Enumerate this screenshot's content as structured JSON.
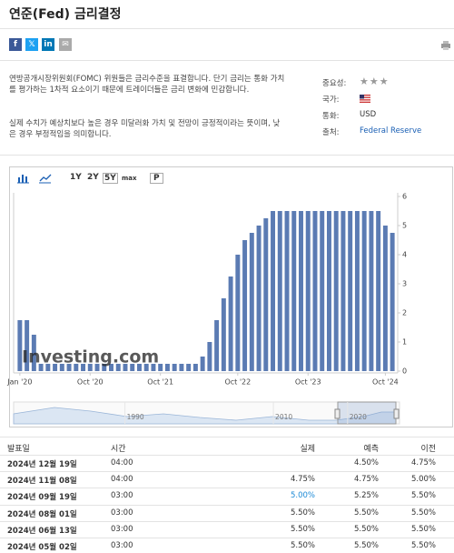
{
  "header": {
    "title": "연준(Fed) 금리결정"
  },
  "description": [
    "연방공개시장위원회(FOMC) 위원들은 금리수준을 표결합니다. 단기 금리는 통화 가치를 평가하는 1차적 요소이기 때문에 트레이더들은 금리 변화에 민감합니다.",
    "실제 수치가 예상치보다 높은 경우 미달러화 가치 및 전망이 긍정적이라는 뜻이며, 낮은 경우 부정적임을 의미합니다."
  ],
  "info": {
    "importance_label": "중요성:",
    "importance": 3,
    "country_label": "국가:",
    "currency_label": "통화:",
    "currency": "USD",
    "source_label": "출처:",
    "source": "Federal Reserve"
  },
  "toolbar": {
    "buttons": [
      "1Y",
      "2Y",
      "5Y",
      "max",
      "P"
    ]
  },
  "chart_data": {
    "type": "bar",
    "color": "#5b7bb3",
    "categories": [
      "Jan '20",
      null,
      null,
      null,
      null,
      null,
      null,
      null,
      null,
      null,
      "Oct '20",
      null,
      null,
      null,
      null,
      null,
      null,
      null,
      null,
      null,
      "Oct '21",
      null,
      null,
      null,
      null,
      null,
      null,
      null,
      null,
      null,
      null,
      "Oct '22",
      null,
      null,
      null,
      null,
      null,
      null,
      null,
      null,
      null,
      "Oct '23",
      null,
      null,
      null,
      null,
      null,
      null,
      null,
      null,
      null,
      null,
      "Oct '24",
      null
    ],
    "values": [
      1.75,
      1.75,
      1.25,
      0.25,
      0.25,
      0.25,
      0.25,
      0.25,
      0.25,
      0.25,
      0.25,
      0.25,
      0.25,
      0.25,
      0.25,
      0.25,
      0.25,
      0.25,
      0.25,
      0.25,
      0.25,
      0.25,
      0.25,
      0.25,
      0.25,
      0.25,
      0.5,
      1.0,
      1.75,
      2.5,
      3.25,
      4.0,
      4.5,
      4.75,
      5.0,
      5.25,
      5.5,
      5.5,
      5.5,
      5.5,
      5.5,
      5.5,
      5.5,
      5.5,
      5.5,
      5.5,
      5.5,
      5.5,
      5.5,
      5.5,
      5.5,
      5.5,
      5.0,
      4.75
    ],
    "ylim": [
      0,
      6
    ],
    "yticks": [
      0,
      1,
      2,
      3,
      4,
      5,
      6
    ],
    "grid": false,
    "watermark": "Investing.com",
    "navigator": {
      "xlim": [
        1975,
        2027
      ],
      "xticks": [
        1990,
        2010,
        2020
      ]
    }
  },
  "table": {
    "header": [
      "발표일",
      "시간",
      "실제",
      "예측",
      "이전"
    ],
    "rows": [
      [
        "2024년 12월 19일",
        "04:00",
        null,
        "4.50%",
        "4.75%"
      ],
      [
        "2024년 11월 08일",
        "04:00",
        "4.75%",
        "4.75%",
        "5.00%"
      ],
      [
        "2024년 09월 19일",
        "03:00",
        "5.00%",
        "5.25%",
        "5.50%"
      ],
      [
        "2024년 08월 01일",
        "03:00",
        "5.50%",
        "5.50%",
        "5.50%"
      ],
      [
        "2024년 06월 13일",
        "03:00",
        "5.50%",
        "5.50%",
        "5.50%"
      ],
      [
        "2024년 05월 02일",
        "03:00",
        "5.50%",
        "5.50%",
        "5.50%"
      ]
    ]
  }
}
